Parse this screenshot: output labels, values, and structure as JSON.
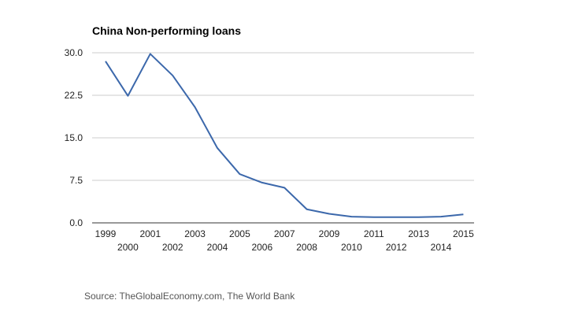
{
  "chart_data": {
    "type": "line",
    "title": "China Non-performing loans",
    "xlabel": "",
    "ylabel": "",
    "x": [
      1999,
      2000,
      2001,
      2002,
      2003,
      2004,
      2005,
      2006,
      2007,
      2008,
      2009,
      2010,
      2011,
      2012,
      2013,
      2014,
      2015
    ],
    "series": [
      {
        "values": [
          28.5,
          22.4,
          29.8,
          26.0,
          20.4,
          13.2,
          8.6,
          7.1,
          6.2,
          2.4,
          1.6,
          1.1,
          1.0,
          1.0,
          1.0,
          1.1,
          1.5
        ]
      }
    ],
    "yticks": [
      "0.0",
      "7.5",
      "15.0",
      "22.5",
      "30.0"
    ],
    "ylim": [
      0,
      30
    ],
    "grid": true,
    "line_color": "#3c68ab"
  },
  "source": "Source: TheGlobalEconomy.com, The World Bank"
}
